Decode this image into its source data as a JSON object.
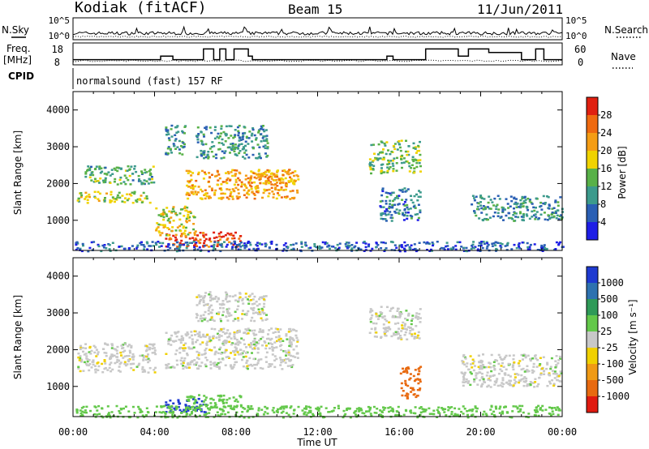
{
  "header": {
    "site": "Kodiak (fitACF)",
    "beam": "Beam 15",
    "date": "11/Jun/2011"
  },
  "top_panels": {
    "nsky_label": "N.Sky",
    "nsearch_label": "N.Search",
    "noise_ticks": [
      "10^5",
      "10^0"
    ],
    "freq_label_1": "Freq.",
    "freq_label_2": "[MHz]",
    "freq_ticks": [
      "18",
      "8"
    ],
    "nave_label": "Nave",
    "nave_ticks": [
      "60",
      "0"
    ],
    "cpid_label": "CPID",
    "cpid_text": "normalsound (fast) 157 RF"
  },
  "chart_data": [
    {
      "type": "line",
      "name": "noise",
      "x_range_hours": [
        0,
        24
      ],
      "ylim": [
        "10^0",
        "10^5"
      ],
      "legend": [
        "N.Sky",
        "N.Search"
      ]
    },
    {
      "type": "line",
      "name": "frequency-nave",
      "x_range_hours": [
        0,
        24
      ],
      "ylim_left": [
        8,
        18
      ],
      "ylim_right": [
        0,
        60
      ],
      "freq_steps": [
        {
          "t": 0.0,
          "v": 10
        },
        {
          "t": 4.3,
          "v": 10
        },
        {
          "t": 4.3,
          "v": 12
        },
        {
          "t": 4.9,
          "v": 12
        },
        {
          "t": 4.9,
          "v": 10
        },
        {
          "t": 6.4,
          "v": 10
        },
        {
          "t": 6.4,
          "v": 16
        },
        {
          "t": 6.9,
          "v": 16
        },
        {
          "t": 6.9,
          "v": 10
        },
        {
          "t": 7.2,
          "v": 10
        },
        {
          "t": 7.2,
          "v": 16
        },
        {
          "t": 7.5,
          "v": 16
        },
        {
          "t": 7.5,
          "v": 10
        },
        {
          "t": 7.9,
          "v": 10
        },
        {
          "t": 7.9,
          "v": 16
        },
        {
          "t": 8.6,
          "v": 16
        },
        {
          "t": 8.6,
          "v": 12
        },
        {
          "t": 8.8,
          "v": 12
        },
        {
          "t": 8.8,
          "v": 10
        },
        {
          "t": 15.4,
          "v": 10
        },
        {
          "t": 15.4,
          "v": 12
        },
        {
          "t": 15.7,
          "v": 12
        },
        {
          "t": 15.7,
          "v": 10
        },
        {
          "t": 17.3,
          "v": 10
        },
        {
          "t": 17.3,
          "v": 16
        },
        {
          "t": 18.9,
          "v": 16
        },
        {
          "t": 18.9,
          "v": 12
        },
        {
          "t": 19.4,
          "v": 12
        },
        {
          "t": 19.4,
          "v": 16
        },
        {
          "t": 20.4,
          "v": 16
        },
        {
          "t": 20.4,
          "v": 14
        },
        {
          "t": 22.0,
          "v": 14
        },
        {
          "t": 22.0,
          "v": 10
        },
        {
          "t": 22.7,
          "v": 10
        },
        {
          "t": 22.7,
          "v": 16
        },
        {
          "t": 23.1,
          "v": 16
        },
        {
          "t": 23.1,
          "v": 10
        },
        {
          "t": 24.0,
          "v": 10
        }
      ]
    },
    {
      "type": "heatmap",
      "name": "power",
      "ylabel": "Slant Range [km]",
      "ylim": [
        180,
        4500
      ],
      "yticks": [
        1000,
        2000,
        3000,
        4000
      ],
      "cbar_label": "Power [dB]",
      "cbar_ticks": [
        4,
        8,
        12,
        16,
        20,
        24,
        28
      ],
      "cbar_range": [
        0,
        32
      ],
      "cbar_colors": [
        "#1e1ee6",
        "#2a5fb4",
        "#3c9a8c",
        "#58b148",
        "#f0d300",
        "#f59d14",
        "#ef6a10",
        "#e02010"
      ],
      "features": [
        {
          "t": [
            4.5,
            8.2
          ],
          "r": [
            300,
            700
          ],
          "v": 28
        },
        {
          "t": [
            4.0,
            6.0
          ],
          "r": [
            600,
            1400
          ],
          "v": 18
        },
        {
          "t": [
            0.1,
            3.8
          ],
          "r": [
            1500,
            1800
          ],
          "v": 16
        },
        {
          "t": [
            0.5,
            4.0
          ],
          "r": [
            2000,
            2500
          ],
          "v": 12
        },
        {
          "t": [
            5.5,
            11.0
          ],
          "r": [
            1600,
            2400
          ],
          "v": 22
        },
        {
          "t": [
            9.0,
            11.0
          ],
          "r": [
            2000,
            2400
          ],
          "v": 22
        },
        {
          "t": [
            4.5,
            5.5
          ],
          "r": [
            2800,
            3600
          ],
          "v": 10
        },
        {
          "t": [
            6.0,
            9.5
          ],
          "r": [
            2700,
            3600
          ],
          "v": 10
        },
        {
          "t": [
            14.5,
            17.0
          ],
          "r": [
            2300,
            3200
          ],
          "v": 14
        },
        {
          "t": [
            15.0,
            17.0
          ],
          "r": [
            1000,
            1900
          ],
          "v": 8
        },
        {
          "t": [
            19.5,
            24.0
          ],
          "r": [
            1000,
            1700
          ],
          "v": 10
        },
        {
          "t": [
            0.0,
            24.0
          ],
          "r": [
            180,
            450
          ],
          "v": 6
        }
      ]
    },
    {
      "type": "heatmap",
      "name": "velocity",
      "ylabel": "Slant Range [km]",
      "ylim": [
        180,
        4500
      ],
      "yticks": [
        1000,
        2000,
        3000,
        4000
      ],
      "xlabel": "Time UT",
      "xticks": [
        "00:00",
        "04:00",
        "08:00",
        "12:00",
        "16:00",
        "20:00",
        "00:00"
      ],
      "cbar_label": "Velocity [m s⁻¹]",
      "cbar_ticks": [
        "1000",
        "500",
        "100",
        "25",
        "-25",
        "-100",
        "-500",
        "-1000"
      ],
      "cbar_colors": [
        "#1e3ad0",
        "#2e72b0",
        "#2f9a58",
        "#63c84a",
        "#c8c8c8",
        "#f0d000",
        "#f09a14",
        "#e86a10",
        "#e01a10"
      ],
      "features": [
        {
          "t": [
            4.5,
            6.5
          ],
          "r": [
            300,
            700
          ],
          "v": 1000
        },
        {
          "t": [
            5.5,
            8.2
          ],
          "r": [
            400,
            800
          ],
          "v": 100
        },
        {
          "t": [
            0.2,
            4.0
          ],
          "r": [
            1400,
            2200
          ],
          "v": 0
        },
        {
          "t": [
            4.5,
            11.0
          ],
          "r": [
            1500,
            2600
          ],
          "v": 0
        },
        {
          "t": [
            6.0,
            9.5
          ],
          "r": [
            2800,
            3600
          ],
          "v": 0
        },
        {
          "t": [
            14.5,
            17.0
          ],
          "r": [
            2300,
            3200
          ],
          "v": 0
        },
        {
          "t": [
            19.0,
            24.0
          ],
          "r": [
            1000,
            1900
          ],
          "v": 0
        },
        {
          "t": [
            16.0,
            17.0
          ],
          "r": [
            700,
            1600
          ],
          "v": -500
        },
        {
          "t": [
            0.0,
            24.0
          ],
          "r": [
            180,
            500
          ],
          "v": 60
        }
      ]
    }
  ]
}
